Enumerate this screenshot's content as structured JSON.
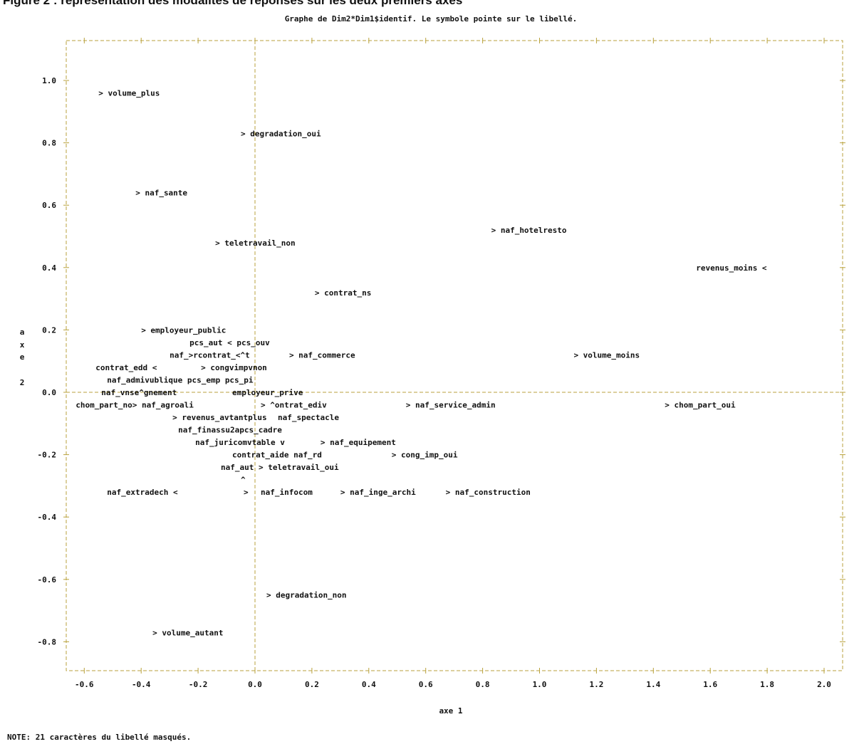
{
  "banner": "Figure 2 : représentation des modalités de réponses sur les deux premiers axes",
  "chart_data": {
    "type": "scatter",
    "title": "Graphe de Dim2*Dim1$identif.  Le symbole pointe sur le libellé.",
    "xlabel": "axe 1",
    "ylabel": "axe 2",
    "ylabel_chars": [
      "a",
      "x",
      "e",
      "",
      "2"
    ],
    "xlim": [
      -0.67,
      2.07
    ],
    "ylim": [
      -0.87,
      1.1
    ],
    "xticks": [
      -0.6,
      -0.4,
      -0.2,
      0.0,
      0.2,
      0.4,
      0.6,
      0.8,
      1.0,
      1.2,
      1.4,
      1.6,
      1.8,
      2.0
    ],
    "xtick_labels": [
      "-0.6",
      "-0.4",
      "-0.2",
      "0.0",
      "0.2",
      "0.4",
      "0.6",
      "0.8",
      "1.0",
      "1.2",
      "1.4",
      "1.6",
      "1.8",
      "2.0"
    ],
    "yticks": [
      1.0,
      0.8,
      0.6,
      0.4,
      0.2,
      0.0,
      -0.2,
      -0.4,
      -0.6,
      -0.8
    ],
    "ytick_labels": [
      "1.0",
      "0.8",
      "0.6",
      "0.4",
      "0.2",
      "0.0",
      "-0.2",
      "-0.4",
      "-0.6",
      "-0.8"
    ],
    "grid": false,
    "reference_lines": {
      "x": 0.0,
      "y": 0.0
    },
    "points": [
      {
        "text": "> volume_plus",
        "x": -0.55,
        "y": 0.96
      },
      {
        "text": "> degradation_oui",
        "x": -0.05,
        "y": 0.83
      },
      {
        "text": "> naf_sante",
        "x": -0.42,
        "y": 0.64
      },
      {
        "text": "> naf_hotelresto",
        "x": 0.83,
        "y": 0.52
      },
      {
        "text": "> teletravail_non",
        "x": -0.14,
        "y": 0.48
      },
      {
        "text": "revenus_moins <",
        "x": 1.55,
        "y": 0.4
      },
      {
        "text": "> contrat_ns",
        "x": 0.21,
        "y": 0.32
      },
      {
        "text": "> employeur_public",
        "x": -0.4,
        "y": 0.2
      },
      {
        "text": "pcs_aut < pcs_ouv",
        "x": -0.23,
        "y": 0.16
      },
      {
        "text": "naf_>rcontrat_<^t",
        "x": -0.3,
        "y": 0.12
      },
      {
        "text": "> naf_commerce",
        "x": 0.12,
        "y": 0.12
      },
      {
        "text": "> volume_moins",
        "x": 1.12,
        "y": 0.12
      },
      {
        "text": "contrat_edd <",
        "x": -0.56,
        "y": 0.08
      },
      {
        "text": "> congvimpvnon",
        "x": -0.19,
        "y": 0.08
      },
      {
        "text": "naf_admivublique pcs_emp pcs_pi",
        "x": -0.52,
        "y": 0.04
      },
      {
        "text": "naf_vnse^gnement",
        "x": -0.54,
        "y": 0.0
      },
      {
        "text": "employeur_prive",
        "x": -0.08,
        "y": 0.0
      },
      {
        "text": "chom_part_no> naf_agroali",
        "x": -0.63,
        "y": -0.04
      },
      {
        "text": "> ^ontrat_ediv",
        "x": 0.02,
        "y": -0.04
      },
      {
        "text": "> naf_service_admin",
        "x": 0.53,
        "y": -0.04
      },
      {
        "text": "> chom_part_oui",
        "x": 1.44,
        "y": -0.04
      },
      {
        "text": "> revenus_avtantplus",
        "x": -0.29,
        "y": -0.08
      },
      {
        "text": "naf_spectacle",
        "x": 0.08,
        "y": -0.08
      },
      {
        "text": "naf_finassu2apcs_cadre",
        "x": -0.27,
        "y": -0.12
      },
      {
        "text": "naf_juricomvtable  v",
        "x": -0.21,
        "y": -0.16
      },
      {
        "text": "> naf_equipement",
        "x": 0.23,
        "y": -0.16
      },
      {
        "text": "contrat_aide naf_rd",
        "x": -0.08,
        "y": -0.2
      },
      {
        "text": "> cong_imp_oui",
        "x": 0.48,
        "y": -0.2
      },
      {
        "text": "naf_aut > teletravail_oui",
        "x": -0.12,
        "y": -0.24
      },
      {
        "text": "^",
        "x": -0.05,
        "y": -0.28
      },
      {
        "text": "naf_extradech <",
        "x": -0.52,
        "y": -0.32
      },
      {
        "text": ">",
        "x": -0.04,
        "y": -0.32
      },
      {
        "text": "naf_infocom",
        "x": 0.02,
        "y": -0.32
      },
      {
        "text": "> naf_inge_archi",
        "x": 0.3,
        "y": -0.32
      },
      {
        "text": "> naf_construction",
        "x": 0.67,
        "y": -0.32
      },
      {
        "text": "> degradation_non",
        "x": 0.04,
        "y": -0.65
      },
      {
        "text": "> volume_autant",
        "x": -0.36,
        "y": -0.77
      }
    ],
    "note": "NOTE: 21 caractères du libellé masqués."
  }
}
